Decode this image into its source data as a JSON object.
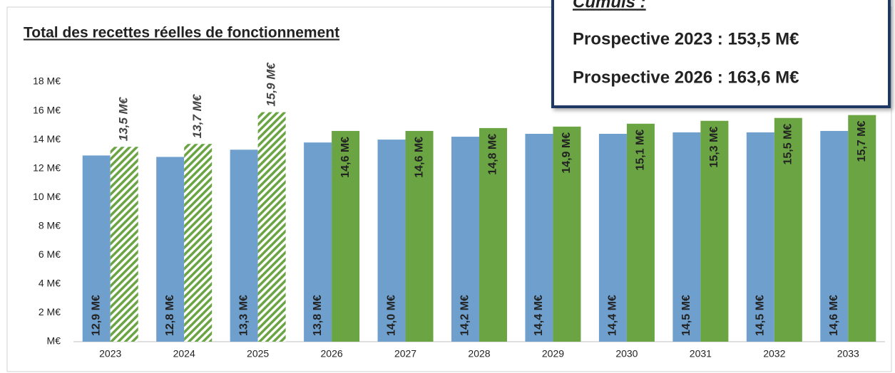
{
  "chart_data": {
    "type": "bar",
    "title": "Total des recettes réelles de fonctionnement",
    "categories": [
      "2023",
      "2024",
      "2025",
      "2026",
      "2027",
      "2028",
      "2029",
      "2030",
      "2031",
      "2032",
      "2033"
    ],
    "series": [
      {
        "color": "#6fa0cd",
        "values": [
          12.9,
          12.8,
          13.3,
          13.8,
          14.0,
          14.2,
          14.4,
          14.4,
          14.5,
          14.5,
          14.6
        ],
        "value_labels": [
          "12,9 M€",
          "12,8 M€",
          "13,3 M€",
          "13,8 M€",
          "14,0 M€",
          "14,2 M€",
          "14,4 M€",
          "14,4 M€",
          "14,5 M€",
          "14,5 M€",
          "14,6 M€"
        ]
      },
      {
        "color": "#6aa443",
        "hatched": [
          true,
          true,
          true,
          false,
          false,
          false,
          false,
          false,
          false,
          false,
          false
        ],
        "values": [
          13.5,
          13.7,
          15.9,
          14.6,
          14.6,
          14.8,
          14.9,
          15.1,
          15.3,
          15.5,
          15.7
        ],
        "value_labels": [
          "13,5 M€",
          "13,7 M€",
          "15,9 M€",
          "14,6 M€",
          "14,6 M€",
          "14,8 M€",
          "14,9 M€",
          "15,1 M€",
          "15,3 M€",
          "15,5 M€",
          "15,7 M€"
        ]
      }
    ],
    "ylim": [
      0,
      18
    ],
    "yticks": [
      {
        "value": 0,
        "label": "M€"
      },
      {
        "value": 2,
        "label": "2 M€"
      },
      {
        "value": 4,
        "label": "4 M€"
      },
      {
        "value": 6,
        "label": "6 M€"
      },
      {
        "value": 8,
        "label": "8 M€"
      },
      {
        "value": 10,
        "label": "10 M€"
      },
      {
        "value": 12,
        "label": "12 M€"
      },
      {
        "value": 14,
        "label": "14 M€"
      },
      {
        "value": 16,
        "label": "16 M€"
      },
      {
        "value": 18,
        "label": "18 M€"
      }
    ],
    "annotation": {
      "heading": "Cumuls :",
      "lines": [
        {
          "text": "Prospective 2023 : 153,5 M€",
          "color": "#6fa0cd"
        },
        {
          "text": "Prospective 2026 : 163,6 M€",
          "color": "#6aa443"
        }
      ]
    }
  }
}
